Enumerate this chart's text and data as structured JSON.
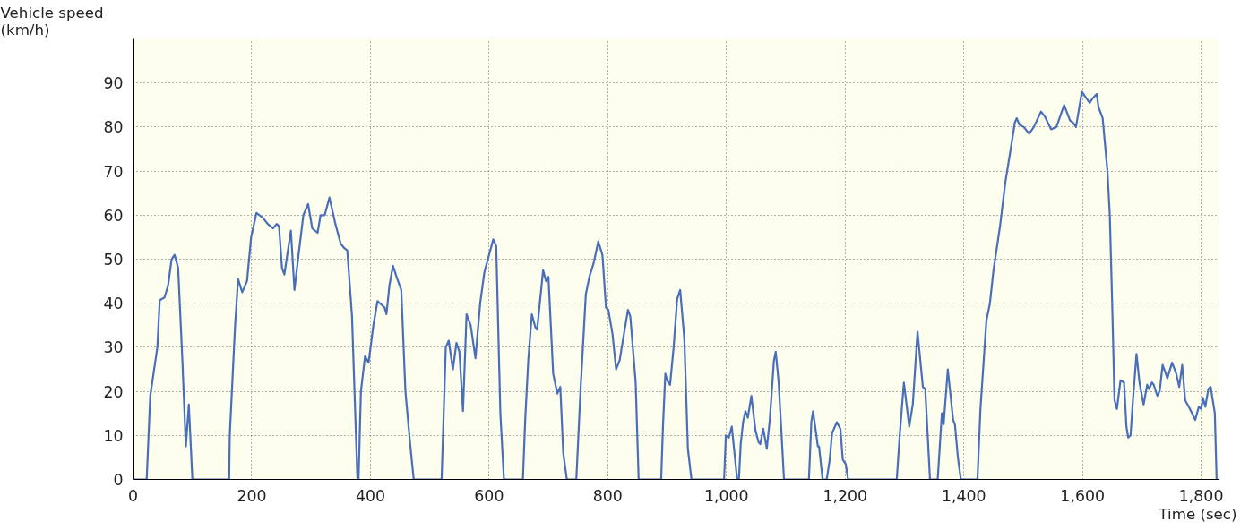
{
  "chart_data": {
    "type": "line",
    "xlabel": "Time (sec)",
    "ylabel": "Vehicle speed\n(km/h)",
    "x": [
      0,
      23,
      29,
      41,
      45,
      53,
      59,
      65,
      70,
      76,
      83,
      89,
      94,
      100,
      162,
      163,
      172,
      177,
      184,
      192,
      199,
      208,
      218,
      227,
      236,
      242,
      246,
      251,
      255,
      261,
      266,
      272,
      278,
      287,
      295,
      302,
      311,
      316,
      323,
      331,
      341,
      350,
      356,
      361,
      369,
      378,
      380,
      384,
      391,
      397,
      405,
      412,
      424,
      427,
      432,
      438,
      444,
      452,
      459,
      467,
      473,
      520,
      527,
      532,
      539,
      545,
      550,
      556,
      562,
      569,
      577,
      585,
      592,
      600,
      607,
      612,
      619,
      625,
      657,
      661,
      666,
      672,
      678,
      681,
      691,
      696,
      700,
      708,
      715,
      720,
      725,
      731,
      747,
      754,
      763,
      769,
      776,
      784,
      791,
      797,
      801,
      808,
      814,
      820,
      826,
      834,
      838,
      844,
      847,
      852,
      890,
      893,
      897,
      900,
      905,
      911,
      917,
      922,
      929,
      935,
      941,
      996,
      999,
      1004,
      1009,
      1012,
      1018,
      1021,
      1024,
      1028,
      1032,
      1036,
      1042,
      1049,
      1054,
      1057,
      1062,
      1068,
      1073,
      1080,
      1083,
      1088,
      1097,
      1139,
      1143,
      1146,
      1154,
      1156,
      1162,
      1169,
      1174,
      1178,
      1186,
      1192,
      1196,
      1201,
      1205,
      1287,
      1292,
      1299,
      1308,
      1314,
      1322,
      1331,
      1335,
      1343,
      1356,
      1363,
      1366,
      1373,
      1382,
      1385,
      1390,
      1395,
      1423,
      1428,
      1438,
      1444,
      1450,
      1461,
      1470,
      1473,
      1479,
      1486,
      1489,
      1494,
      1501,
      1510,
      1518,
      1530,
      1536,
      1547,
      1556,
      1569,
      1579,
      1584,
      1589,
      1599,
      1612,
      1617,
      1624,
      1627,
      1634,
      1642,
      1646,
      1650,
      1654,
      1658,
      1664,
      1670,
      1674,
      1677,
      1681,
      1685,
      1691,
      1696,
      1703,
      1709,
      1712,
      1717,
      1720,
      1726,
      1730,
      1735,
      1743,
      1751,
      1758,
      1763,
      1768,
      1773,
      1781,
      1790,
      1796,
      1800,
      1803,
      1807,
      1812,
      1816,
      1823,
      1826
    ],
    "series": [
      {
        "color": "#4a6fba",
        "values": [
          0,
          0,
          19,
          30,
          40.7,
          41.3,
          44,
          50,
          51,
          48,
          27.5,
          7.5,
          17,
          0,
          0,
          10,
          35,
          45.5,
          42.5,
          45,
          55,
          60.5,
          59.5,
          58,
          57,
          58,
          57.5,
          48,
          46.5,
          52,
          56.5,
          43,
          50,
          60,
          62.5,
          57,
          56,
          60,
          60,
          64,
          58,
          53.5,
          52.5,
          52,
          37,
          0.5,
          0,
          20,
          28,
          26.5,
          35,
          40.5,
          39,
          37.5,
          44,
          48.5,
          46,
          43,
          20,
          8,
          0,
          0,
          30,
          31.5,
          25,
          31,
          29,
          15.5,
          37.5,
          35,
          27.5,
          40,
          47,
          51,
          54.5,
          53,
          15,
          0,
          0,
          14,
          27,
          37.5,
          34.5,
          34,
          47.5,
          45,
          46,
          24,
          19.5,
          21,
          6,
          0,
          0,
          20,
          42,
          46,
          49,
          54,
          51,
          39,
          38.5,
          33,
          25,
          27,
          32,
          38.5,
          37,
          27,
          22,
          0,
          0,
          12,
          24,
          22.5,
          21.5,
          30,
          41,
          43,
          32,
          7,
          0,
          0,
          10,
          9.5,
          12,
          8,
          0,
          0,
          8,
          13,
          15.5,
          14,
          19,
          11,
          8.5,
          8,
          11.5,
          7,
          13.5,
          27,
          29,
          22,
          0,
          0,
          13,
          15.5,
          7.5,
          7.5,
          0,
          0,
          4.5,
          10.5,
          13,
          11.5,
          4.5,
          3.5,
          0,
          0,
          10,
          22,
          12,
          17,
          33.5,
          21,
          20.5,
          0,
          0,
          15,
          12.5,
          25,
          13.5,
          12.5,
          5,
          0,
          0,
          16,
          36,
          40,
          47.5,
          57.5,
          67.5,
          70,
          75,
          81,
          82,
          80.5,
          80,
          78.5,
          80,
          83.5,
          82.5,
          79.5,
          80,
          85,
          81.5,
          81,
          80,
          88,
          85.5,
          86.5,
          87.5,
          84.5,
          82,
          70,
          60,
          40,
          18,
          16,
          22.5,
          22,
          12,
          9.5,
          10,
          18,
          28.5,
          22,
          17,
          21.5,
          20.5,
          22,
          21.5,
          19,
          20,
          26,
          23,
          26.5,
          24,
          21,
          26,
          18,
          16,
          13.5,
          16.5,
          16,
          18.5,
          16.5,
          20.5,
          21,
          15,
          0
        ]
      }
    ],
    "xlim": [
      0,
      1830
    ],
    "ylim": [
      0,
      100
    ],
    "xticks": [
      0,
      {
        "value": 200,
        "label": "200"
      },
      400,
      600,
      800,
      {
        "value": 1000,
        "label": "1,000"
      },
      {
        "value": 1200,
        "label": "1,200"
      },
      {
        "value": 1400,
        "label": "1,400"
      },
      {
        "value": 1600,
        "label": "1,600"
      },
      {
        "value": 1800,
        "label": "1,800"
      }
    ],
    "yticks": [
      0,
      10,
      20,
      30,
      40,
      50,
      60,
      70,
      80,
      90
    ],
    "grid": true,
    "line_style": "solid"
  }
}
